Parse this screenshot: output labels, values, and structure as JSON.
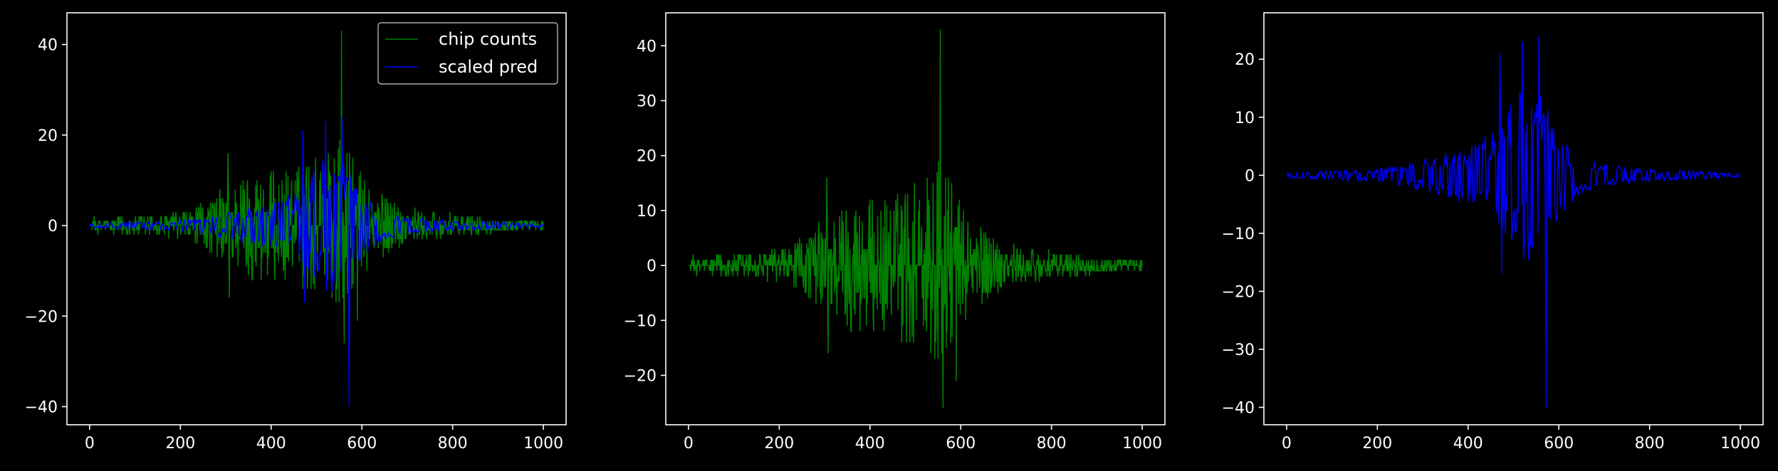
{
  "theme": {
    "background": "#000000",
    "foreground": "#ffffff",
    "green": "#008000",
    "blue": "#0000ff"
  },
  "chart_data": [
    {
      "type": "line",
      "title": "",
      "xlabel": "",
      "ylabel": "",
      "xlim": [
        -50,
        1050
      ],
      "ylim": [
        -44,
        47
      ],
      "xticks": [
        0,
        200,
        400,
        600,
        800,
        1000
      ],
      "yticks": [
        -40,
        -20,
        0,
        20,
        40
      ],
      "legend": {
        "position": "upper right",
        "entries": [
          "chip counts",
          "scaled pred"
        ]
      },
      "series": [
        {
          "name": "chip counts",
          "color": "#008000",
          "pattern": "symmetric noisy envelope (positive and negative lobes) centred at x=550, sampled every 1 unit",
          "x_range": [
            0,
            1000
          ],
          "envelope_x": [
            0,
            100,
            200,
            250,
            300,
            350,
            400,
            450,
            500,
            550,
            600,
            650,
            700,
            800,
            900,
            1000
          ],
          "envelope_y": [
            1.5,
            2.2,
            3,
            5,
            9,
            12,
            12,
            13,
            16,
            20,
            12,
            7,
            4,
            2.5,
            1.5,
            1
          ],
          "peaks": [
            [
              555,
              43
            ],
            [
              561,
              -26
            ],
            [
              305,
              16
            ],
            [
              308,
              -16
            ],
            [
              580,
              15
            ],
            [
              590,
              -21
            ]
          ]
        },
        {
          "name": "scaled pred",
          "color": "#0000ff",
          "pattern": "two mirrored bands (upper and lower) centred at x=550, sampled every 2 units",
          "x_range": [
            0,
            1000
          ],
          "envelope_x": [
            0,
            100,
            200,
            250,
            300,
            350,
            400,
            450,
            500,
            550,
            600,
            650,
            700,
            800,
            900,
            1000
          ],
          "envelope_y": [
            0.4,
            0.6,
            1,
            1.5,
            2.2,
            3.2,
            4,
            6,
            11,
            13,
            6,
            2.5,
            1.6,
            0.9,
            0.6,
            0.3
          ],
          "peaks": [
            [
              557,
              24
            ],
            [
              573,
              -40
            ],
            [
              470,
              21
            ],
            [
              520,
              23
            ],
            [
              475,
              -17
            ],
            [
              555,
              -10
            ]
          ]
        }
      ]
    },
    {
      "type": "line",
      "title": "",
      "xlabel": "",
      "ylabel": "",
      "xlim": [
        -50,
        1050
      ],
      "ylim": [
        -29,
        46
      ],
      "xticks": [
        0,
        200,
        400,
        600,
        800,
        1000
      ],
      "yticks": [
        -20,
        -10,
        0,
        10,
        20,
        30,
        40
      ],
      "series": [
        {
          "color": "#008000",
          "pattern": "same signal as chip counts in panel 1",
          "x_range": [
            0,
            1000
          ],
          "envelope_x": [
            0,
            100,
            200,
            250,
            300,
            350,
            400,
            450,
            500,
            550,
            600,
            650,
            700,
            800,
            900,
            1000
          ],
          "envelope_y": [
            1.5,
            2.2,
            3,
            5,
            9,
            12,
            12,
            13,
            16,
            20,
            12,
            7,
            4,
            2.5,
            1.5,
            1
          ],
          "peaks": [
            [
              555,
              43
            ],
            [
              561,
              -26
            ],
            [
              305,
              16
            ],
            [
              308,
              -16
            ],
            [
              580,
              15
            ],
            [
              590,
              -21
            ]
          ]
        }
      ]
    },
    {
      "type": "line",
      "title": "",
      "xlabel": "",
      "ylabel": "",
      "xlim": [
        -50,
        1050
      ],
      "ylim": [
        -43,
        28
      ],
      "xticks": [
        0,
        200,
        400,
        600,
        800,
        1000
      ],
      "yticks": [
        -40,
        -30,
        -20,
        -10,
        0,
        10,
        20
      ],
      "series": [
        {
          "color": "#0000ff",
          "pattern": "same signal as scaled pred in panel 1",
          "x_range": [
            0,
            1000
          ],
          "envelope_x": [
            0,
            100,
            200,
            250,
            300,
            350,
            400,
            450,
            500,
            550,
            600,
            650,
            700,
            800,
            900,
            1000
          ],
          "envelope_y": [
            0.4,
            0.6,
            1,
            1.5,
            2.2,
            3.2,
            4,
            6,
            11,
            13,
            6,
            2.5,
            1.6,
            0.9,
            0.6,
            0.3
          ],
          "peaks": [
            [
              557,
              24
            ],
            [
              573,
              -40
            ],
            [
              470,
              21
            ],
            [
              520,
              23
            ],
            [
              475,
              -17
            ],
            [
              555,
              -10
            ]
          ]
        }
      ]
    }
  ]
}
